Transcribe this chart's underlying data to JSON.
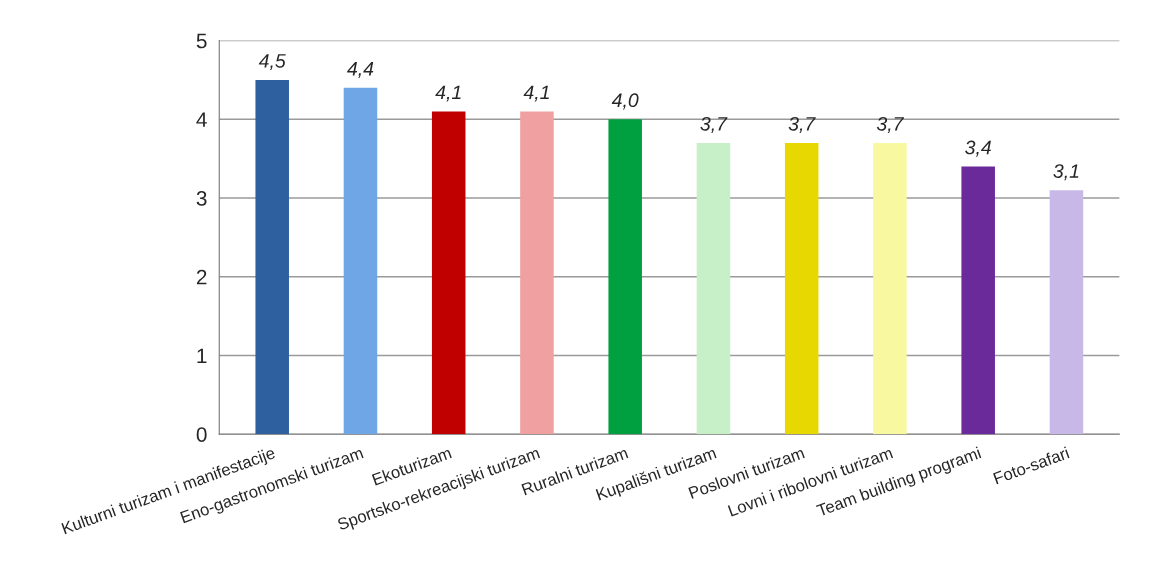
{
  "chart_data": {
    "type": "bar",
    "categories": [
      "Kulturni turizam i manifestacije",
      "Eno-gastronomski turizam",
      "Ekoturizam",
      "Sportsko-rekreacijski turizam",
      "Ruralni turizam",
      "Kupališni turizam",
      "Poslovni turizam",
      "Lovni i ribolovni turizam",
      "Team building programi",
      "Foto-safari"
    ],
    "values": [
      4.5,
      4.4,
      4.1,
      4.1,
      4.0,
      3.7,
      3.7,
      3.7,
      3.4,
      3.1
    ],
    "value_labels": [
      "4,5",
      "4,4",
      "4,1",
      "4,1",
      "4,0",
      "3,7",
      "3,7",
      "3,7",
      "3,4",
      "3,1"
    ],
    "colors": [
      "#2e5f9e",
      "#6fa6e6",
      "#c00000",
      "#f0a0a0",
      "#00a040",
      "#c8f0c8",
      "#e6d800",
      "#f8f8a0",
      "#6a2a9a",
      "#c8b8e8"
    ],
    "ylim": [
      0,
      5
    ],
    "yticks": [
      0,
      1,
      2,
      3,
      4,
      5
    ],
    "grid": "y"
  }
}
